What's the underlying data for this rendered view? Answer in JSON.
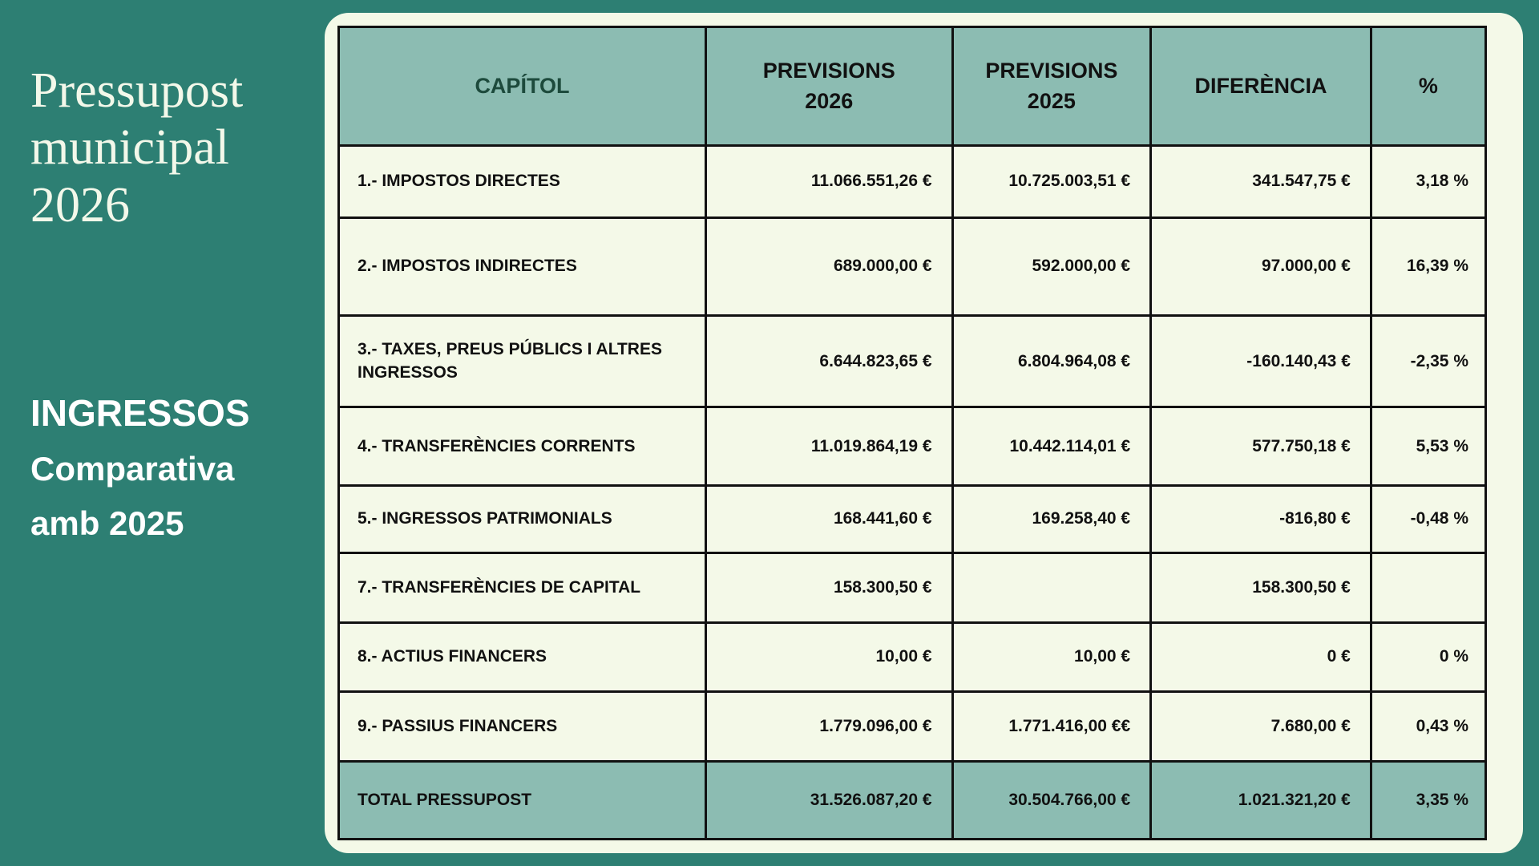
{
  "sidebar": {
    "title_lines": [
      "Pressupost",
      "municipal",
      "2026"
    ],
    "subtitle_lines": [
      "INGRESSOS",
      "Comparativa",
      "amb 2025"
    ]
  },
  "table": {
    "columns": [
      "CAPÍTOL",
      "PREVISIONS\n2026",
      "PREVISIONS\n2025",
      "DIFERÈNCIA",
      "%"
    ],
    "rows": [
      {
        "capitol": "1.- IMPOSTOS DIRECTES",
        "prev_2026": "11.066.551,26 €",
        "prev_2025": "10.725.003,51 €",
        "diferencia": "341.547,75 €",
        "percent": "3,18 %"
      },
      {
        "capitol": "2.- IMPOSTOS INDIRECTES",
        "prev_2026": "689.000,00 €",
        "prev_2025": "592.000,00 €",
        "diferencia": "97.000,00 €",
        "percent": "16,39 %"
      },
      {
        "capitol": "3.- TAXES, PREUS PÚBLICS I ALTRES INGRESSOS",
        "prev_2026": "6.644.823,65 €",
        "prev_2025": "6.804.964,08 €",
        "diferencia": "-160.140,43 €",
        "percent": "-2,35 %"
      },
      {
        "capitol": "4.- TRANSFERÈNCIES CORRENTS",
        "prev_2026": "11.019.864,19 €",
        "prev_2025": "10.442.114,01 €",
        "diferencia": "577.750,18 €",
        "percent": "5,53 %"
      },
      {
        "capitol": "5.- INGRESSOS PATRIMONIALS",
        "prev_2026": "168.441,60 €",
        "prev_2025": "169.258,40 €",
        "diferencia": "-816,80 €",
        "percent": "-0,48 %"
      },
      {
        "capitol": "7.- TRANSFERÈNCIES DE CAPITAL",
        "prev_2026": "158.300,50 €",
        "prev_2025": "",
        "diferencia": "158.300,50 €",
        "percent": ""
      },
      {
        "capitol": "8.- ACTIUS FINANCERS",
        "prev_2026": "10,00 €",
        "prev_2025": "10,00 €",
        "diferencia": "0 €",
        "percent": "0 %"
      },
      {
        "capitol": "9.- PASSIUS FINANCERS",
        "prev_2026": "1.779.096,00 €",
        "prev_2025": "1.771.416,00 €€",
        "diferencia": "7.680,00 €",
        "percent": "0,43 %"
      }
    ],
    "total": {
      "capitol": "TOTAL PRESSUPOST",
      "prev_2026": "31.526.087,20 €",
      "prev_2025": "30.504.766,00 €",
      "diferencia": "1.021.321,20 €",
      "percent": "3,35 %"
    }
  },
  "colors": {
    "background_teal": "#2d7f73",
    "header_sage": "#8cbcb2",
    "panel_cream": "#f4f9e8",
    "border_black": "#111111",
    "capitol_header_green": "#1d4a3c",
    "title_cream": "#f3f8ea",
    "subtitle_white": "#ffffff"
  }
}
